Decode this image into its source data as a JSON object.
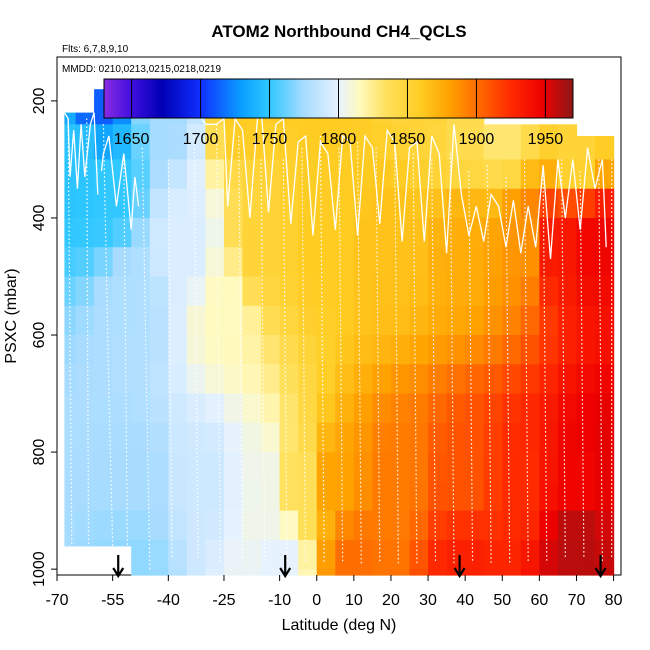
{
  "chart_data": {
    "type": "heatmap",
    "title": "ATOM2 Northbound CH4_QCLS",
    "flights_note": "Flts: 6,7,8,9,10",
    "dates_note": "MMDD: 0210,0213,0215,0218,0219",
    "xlabel": "Latitude (deg N)",
    "ylabel": "PSXC (mbar)",
    "xlim": [
      -70,
      82
    ],
    "ylim": [
      1010,
      125
    ],
    "x_ticks": [
      -70,
      -55,
      -40,
      -25,
      -10,
      0,
      10,
      20,
      30,
      40,
      50,
      60,
      70,
      80
    ],
    "y_ticks": [
      200,
      400,
      600,
      800,
      1000
    ],
    "colorbar": {
      "range": [
        1630,
        1970
      ],
      "ticks": [
        1650,
        1700,
        1750,
        1800,
        1850,
        1900,
        1950
      ],
      "stops": [
        {
          "v": 1630,
          "c": "#8a2be2"
        },
        {
          "v": 1650,
          "c": "#3f0fe0"
        },
        {
          "v": 1672,
          "c": "#0000b4"
        },
        {
          "v": 1700,
          "c": "#1030ff"
        },
        {
          "v": 1730,
          "c": "#0aa0ff"
        },
        {
          "v": 1750,
          "c": "#30c8ff"
        },
        {
          "v": 1775,
          "c": "#a8dcff"
        },
        {
          "v": 1800,
          "c": "#e6f2ff"
        },
        {
          "v": 1815,
          "c": "#fffac0"
        },
        {
          "v": 1835,
          "c": "#ffe05a"
        },
        {
          "v": 1860,
          "c": "#ffcc22"
        },
        {
          "v": 1880,
          "c": "#ffa200"
        },
        {
          "v": 1900,
          "c": "#ff6e00"
        },
        {
          "v": 1925,
          "c": "#ff2a00"
        },
        {
          "v": 1948,
          "c": "#ee0000"
        },
        {
          "v": 1970,
          "c": "#8c1818"
        }
      ]
    },
    "grid": {
      "lat_edges": [
        -68,
        -65,
        -60,
        -55,
        -50,
        -45,
        -40,
        -35,
        -30,
        -25,
        -20,
        -15,
        -10,
        -5,
        0,
        5,
        10,
        15,
        20,
        25,
        30,
        35,
        40,
        45,
        50,
        55,
        60,
        65,
        70,
        75,
        80
      ],
      "pressure_edges": [
        180,
        240,
        300,
        350,
        400,
        450,
        500,
        550,
        600,
        650,
        700,
        750,
        800,
        850,
        900,
        950,
        1000
      ],
      "top_pressure_by_column": [
        220,
        220,
        180,
        180,
        180,
        180,
        180,
        180,
        180,
        180,
        180,
        180,
        180,
        180,
        180,
        180,
        180,
        180,
        180,
        180,
        180,
        180,
        180,
        240,
        240,
        240,
        240,
        240,
        260,
        260
      ],
      "bottom_pressure_by_column": [
        960,
        960,
        960,
        960,
        1010,
        1010,
        1010,
        1010,
        1010,
        1010,
        1010,
        1010,
        1010,
        1010,
        1010,
        1010,
        1010,
        1010,
        1010,
        1010,
        1010,
        1010,
        1010,
        1010,
        1010,
        1010,
        1010,
        1010,
        1010,
        1010
      ],
      "blend_points": [
        {
          "lat": -60,
          "p": 200,
          "v": 1712
        },
        {
          "lat": -57,
          "p": 350,
          "v": 1750
        },
        {
          "lat": -65,
          "p": 300,
          "v": 1748
        },
        {
          "lat": -40,
          "p": 200,
          "v": 1775
        },
        {
          "lat": -20,
          "p": 200,
          "v": 1860
        },
        {
          "lat": 0,
          "p": 200,
          "v": 1860
        },
        {
          "lat": 30,
          "p": 200,
          "v": 1850
        },
        {
          "lat": 40,
          "p": 240,
          "v": 1840
        },
        {
          "lat": 50,
          "p": 240,
          "v": 1830
        },
        {
          "lat": 70,
          "p": 280,
          "v": 1850
        },
        {
          "lat": -50,
          "p": 550,
          "v": 1778
        },
        {
          "lat": -35,
          "p": 450,
          "v": 1795
        },
        {
          "lat": -25,
          "p": 550,
          "v": 1815
        },
        {
          "lat": -15,
          "p": 450,
          "v": 1850
        },
        {
          "lat": 0,
          "p": 450,
          "v": 1860
        },
        {
          "lat": 20,
          "p": 450,
          "v": 1865
        },
        {
          "lat": 40,
          "p": 450,
          "v": 1875
        },
        {
          "lat": 55,
          "p": 450,
          "v": 1885
        },
        {
          "lat": 65,
          "p": 450,
          "v": 1935
        },
        {
          "lat": 75,
          "p": 450,
          "v": 1945
        },
        {
          "lat": -50,
          "p": 850,
          "v": 1775
        },
        {
          "lat": -30,
          "p": 850,
          "v": 1790
        },
        {
          "lat": -15,
          "p": 850,
          "v": 1805
        },
        {
          "lat": -5,
          "p": 850,
          "v": 1835
        },
        {
          "lat": 5,
          "p": 850,
          "v": 1880
        },
        {
          "lat": 20,
          "p": 850,
          "v": 1895
        },
        {
          "lat": 40,
          "p": 850,
          "v": 1910
        },
        {
          "lat": 55,
          "p": 850,
          "v": 1925
        },
        {
          "lat": 70,
          "p": 850,
          "v": 1945
        },
        {
          "lat": 78,
          "p": 800,
          "v": 1950
        },
        {
          "lat": -50,
          "p": 990,
          "v": 1770
        },
        {
          "lat": -10,
          "p": 990,
          "v": 1800
        },
        {
          "lat": 10,
          "p": 990,
          "v": 1900
        },
        {
          "lat": 40,
          "p": 990,
          "v": 1930
        },
        {
          "lat": 70,
          "p": 950,
          "v": 1960
        }
      ]
    },
    "arrows_lat": [
      -53.5,
      -8.5,
      38.5,
      76.5
    ],
    "flight_tracks": [
      [
        [
          -67,
          230
        ],
        [
          -66,
          960
        ]
      ],
      [
        [
          -62,
          230
        ],
        [
          -61.5,
          960
        ]
      ],
      [
        [
          -57.5,
          240
        ],
        [
          -56,
          700
        ],
        [
          -55,
          960
        ]
      ],
      [
        [
          -52,
          300
        ],
        [
          -51,
          980
        ]
      ],
      [
        [
          -47,
          280
        ],
        [
          -45,
          1000
        ]
      ],
      [
        [
          -40,
          300
        ],
        [
          -39,
          980
        ]
      ],
      [
        [
          -33,
          260
        ],
        [
          -32,
          980
        ]
      ],
      [
        [
          -27,
          240
        ],
        [
          -26,
          990
        ]
      ],
      [
        [
          -21,
          260
        ],
        [
          -20,
          990
        ]
      ],
      [
        [
          -15,
          300
        ],
        [
          -14,
          990
        ]
      ],
      [
        [
          -9,
          300
        ],
        [
          -8,
          990
        ]
      ],
      [
        [
          -4,
          280
        ],
        [
          -3,
          990
        ]
      ],
      [
        [
          1,
          260
        ],
        [
          2,
          990
        ]
      ],
      [
        [
          6,
          280
        ],
        [
          7,
          990
        ]
      ],
      [
        [
          11,
          270
        ],
        [
          12,
          990
        ]
      ],
      [
        [
          16,
          280
        ],
        [
          17,
          990
        ]
      ],
      [
        [
          21,
          270
        ],
        [
          22,
          990
        ]
      ],
      [
        [
          26,
          290
        ],
        [
          27,
          990
        ]
      ],
      [
        [
          31,
          300
        ],
        [
          32,
          990
        ]
      ],
      [
        [
          36,
          290
        ],
        [
          37,
          990
        ]
      ],
      [
        [
          41,
          320
        ],
        [
          42,
          990
        ]
      ],
      [
        [
          46,
          310
        ],
        [
          47,
          990
        ]
      ],
      [
        [
          51,
          330
        ],
        [
          52,
          990
        ]
      ],
      [
        [
          56,
          300
        ],
        [
          57,
          990
        ]
      ],
      [
        [
          61,
          320
        ],
        [
          62,
          990
        ]
      ],
      [
        [
          66,
          300
        ],
        [
          67,
          980
        ]
      ],
      [
        [
          71,
          320
        ],
        [
          72,
          980
        ]
      ],
      [
        [
          76,
          300
        ],
        [
          77,
          990
        ]
      ],
      [
        [
          79.5,
          300
        ],
        [
          79.5,
          980
        ]
      ]
    ],
    "solid_tracks": [
      [
        [
          -68,
          220
        ],
        [
          -67,
          230
        ],
        [
          -66.5,
          330
        ],
        [
          -65.5,
          250
        ],
        [
          -64.5,
          350
        ],
        [
          -63.5,
          240
        ],
        [
          -62.5,
          330
        ],
        [
          -61,
          240
        ],
        [
          -60,
          220
        ],
        [
          -59,
          360
        ]
      ],
      [
        [
          -58,
          320
        ],
        [
          -57.5,
          290
        ],
        [
          -56,
          260
        ],
        [
          -54,
          380
        ],
        [
          -52,
          290
        ],
        [
          -50,
          420
        ],
        [
          -49,
          330
        ],
        [
          -48,
          380
        ]
      ],
      [
        [
          -31,
          230
        ],
        [
          -30,
          240
        ],
        [
          -27,
          240
        ],
        [
          -25,
          230
        ],
        [
          -24,
          380
        ],
        [
          -22,
          230
        ],
        [
          -20,
          250
        ],
        [
          -18,
          400
        ],
        [
          -16,
          230
        ],
        [
          -15,
          210
        ],
        [
          -13,
          390
        ],
        [
          -11,
          240
        ],
        [
          -9,
          230
        ],
        [
          -7,
          410
        ],
        [
          -5,
          270
        ],
        [
          -3,
          260
        ],
        [
          -1,
          430
        ],
        [
          1,
          270
        ],
        [
          3,
          290
        ],
        [
          5,
          420
        ],
        [
          7,
          260
        ],
        [
          9,
          270
        ],
        [
          11,
          430
        ],
        [
          13,
          260
        ],
        [
          15,
          280
        ],
        [
          17,
          410
        ],
        [
          19,
          250
        ],
        [
          21,
          270
        ],
        [
          23,
          440
        ],
        [
          25,
          280
        ],
        [
          27,
          270
        ],
        [
          29,
          440
        ],
        [
          31,
          260
        ],
        [
          33,
          290
        ],
        [
          35,
          460
        ],
        [
          37,
          240
        ],
        [
          39,
          360
        ],
        [
          41,
          430
        ],
        [
          43,
          380
        ],
        [
          45,
          440
        ],
        [
          47,
          360
        ],
        [
          49,
          380
        ],
        [
          51,
          450
        ],
        [
          53,
          370
        ],
        [
          55,
          460
        ],
        [
          57,
          380
        ],
        [
          59,
          450
        ],
        [
          61,
          310
        ],
        [
          63,
          470
        ],
        [
          65,
          300
        ],
        [
          67,
          400
        ],
        [
          69,
          300
        ],
        [
          71,
          420
        ],
        [
          73,
          280
        ],
        [
          75,
          350
        ],
        [
          77,
          300
        ],
        [
          78,
          450
        ]
      ]
    ]
  }
}
